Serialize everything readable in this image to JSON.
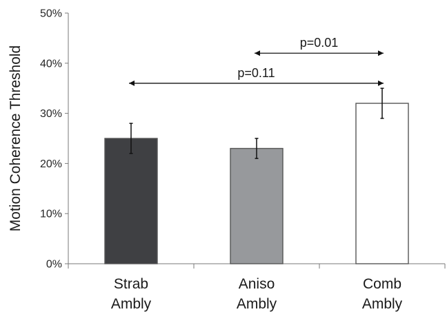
{
  "chart_data": {
    "type": "bar",
    "categories": [
      [
        "Strab",
        "Ambly"
      ],
      [
        "Aniso",
        "Ambly"
      ],
      [
        "Comb",
        "Ambly"
      ]
    ],
    "values": [
      25,
      23,
      32
    ],
    "error": [
      3,
      2,
      3
    ],
    "colors": [
      "#3f4043",
      "#97999c",
      "#ffffff"
    ],
    "bar_stroke": "#555555",
    "ylabel": "Motion Coherence Threshold",
    "ylim": [
      0,
      50
    ],
    "yticks": [
      0,
      10,
      20,
      30,
      40,
      50
    ],
    "ytick_labels": [
      "0%",
      "10%",
      "20%",
      "30%",
      "40%",
      "50%"
    ],
    "grid": false,
    "annotations": [
      {
        "label": "p=0.01",
        "from": 1,
        "to": 2,
        "y": 42
      },
      {
        "label": "p=0.11",
        "from": 0,
        "to": 2,
        "y": 36
      }
    ]
  }
}
